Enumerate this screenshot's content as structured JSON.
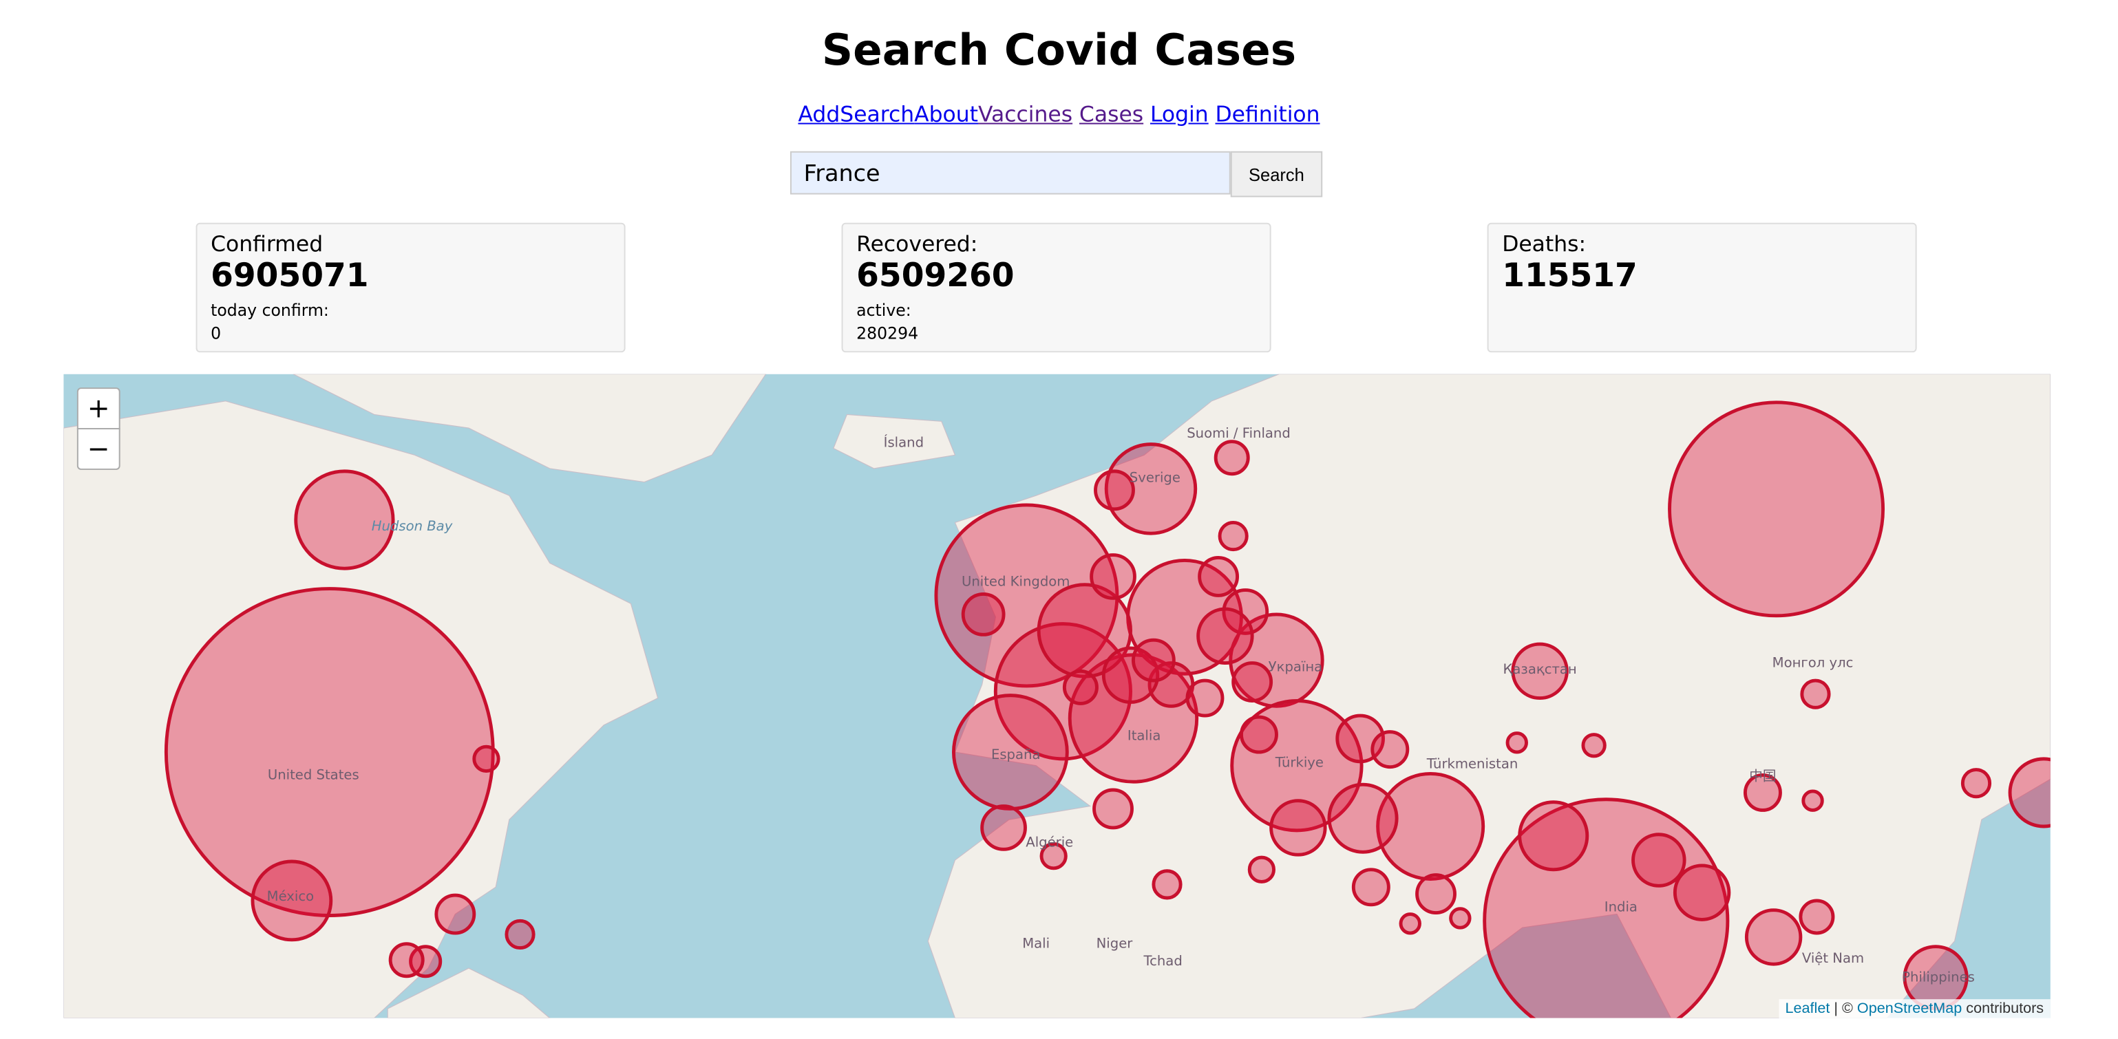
{
  "header": {
    "title": "Search Covid Cases"
  },
  "nav": {
    "links": [
      "Add",
      "Search",
      "About",
      "Vaccines",
      "Cases",
      "Login",
      "Definition"
    ]
  },
  "search": {
    "value": "France",
    "button": "Search"
  },
  "cards": [
    {
      "label": "Confirmed",
      "value": 6905071,
      "sub_label": "today confirm:",
      "sub_value": 0
    },
    {
      "label": "Recovered:",
      "value": 6509260,
      "sub_label": "active:",
      "sub_value": 280294
    },
    {
      "label": "Deaths:",
      "value": 115517
    }
  ],
  "map": {
    "zoom_in": "+",
    "zoom_out": "−",
    "labels": [
      "Ísland",
      "Suomi / Finland",
      "Sverige",
      "United Kingdom",
      "Hudson Bay",
      "United States",
      "México",
      "Україна",
      "Türkiye",
      "Қазақстан",
      "Монгол улс",
      "中国",
      "Türkmenistan",
      "India",
      "Italia",
      "España",
      "Mali",
      "Niger",
      "Tchad",
      "Việt Nam",
      "Philippines",
      "Algérie"
    ],
    "attribution": {
      "leaflet": "Leaflet",
      "separator": "| ©",
      "osm": "OpenStreetMap",
      "suffix": "contributors"
    }
  }
}
